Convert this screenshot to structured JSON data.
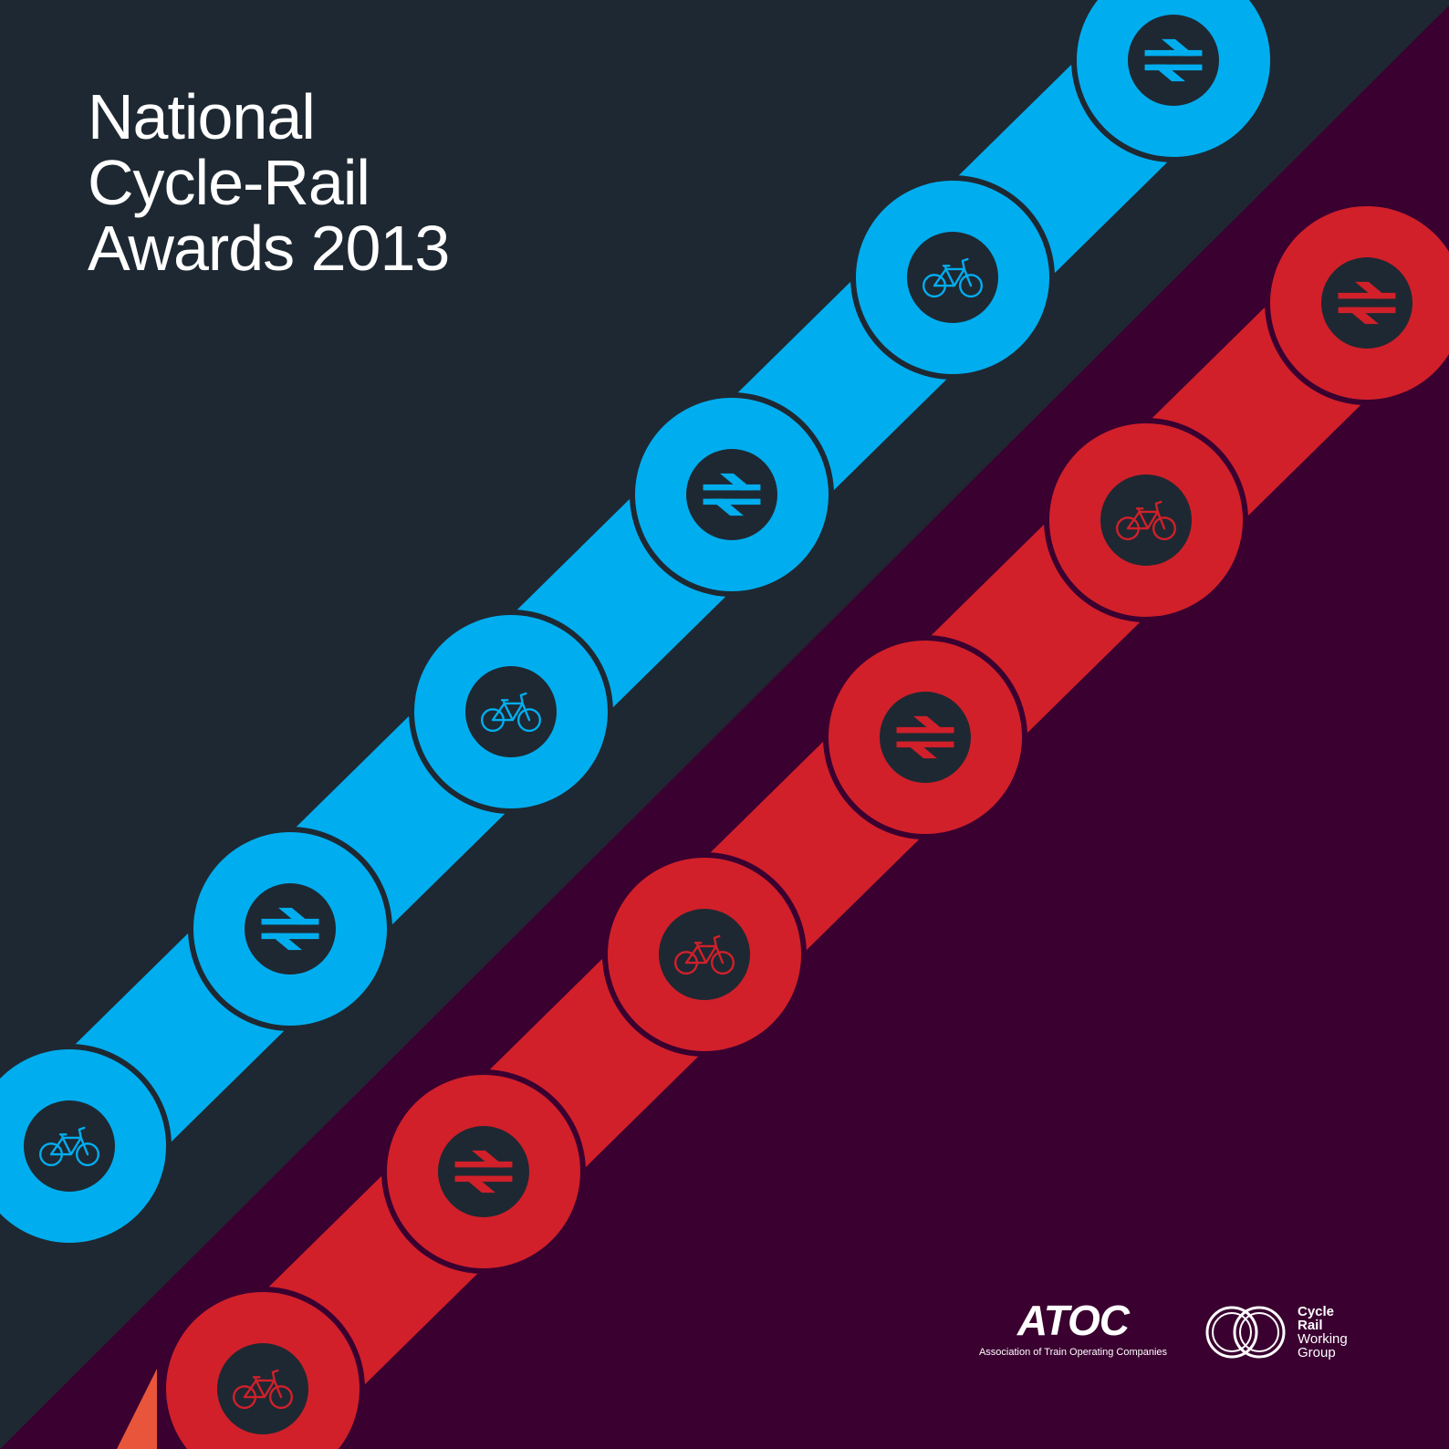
{
  "title": {
    "line1": "National",
    "line2": "Cycle-Rail",
    "line3": "Awards 2013"
  },
  "colors": {
    "background_dark": "#1e2832",
    "background_plum": "#3a0030",
    "chain_blue": "#00aeef",
    "chain_red": "#d1202a",
    "accent_orange": "#e8553a"
  },
  "chains": {
    "blue": [
      "rail-icon",
      "bicycle-icon",
      "rail-icon",
      "bicycle-icon",
      "rail-icon",
      "bicycle-icon"
    ],
    "red": [
      "rail-icon",
      "bicycle-icon",
      "rail-icon",
      "bicycle-icon",
      "rail-icon",
      "bicycle-icon"
    ]
  },
  "logos": {
    "atoc_word": "ATOC",
    "atoc_subtitle": "Association of Train Operating Companies",
    "crwg_line1": "Cycle",
    "crwg_line2": "Rail",
    "crwg_line3": "Working",
    "crwg_line4": "Group"
  }
}
